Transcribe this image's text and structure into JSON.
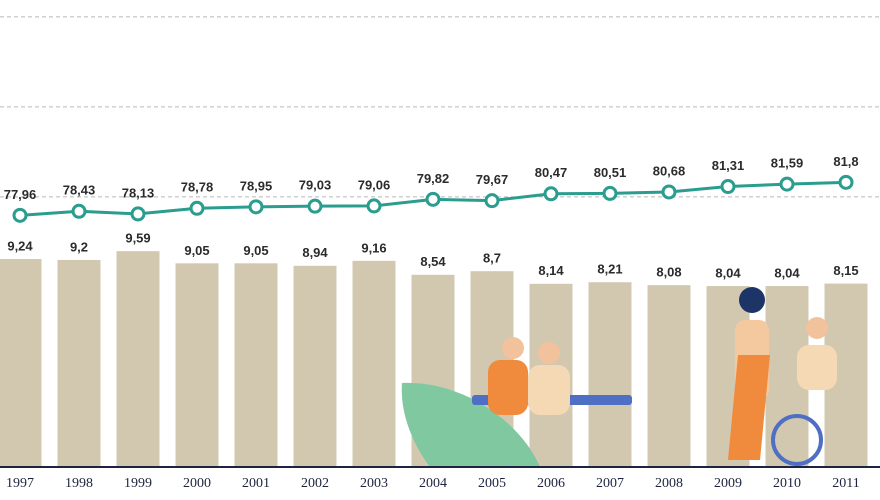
{
  "chart_data": {
    "type": "bar",
    "categories": [
      "1997",
      "1998",
      "1999",
      "2000",
      "2001",
      "2002",
      "2003",
      "2004",
      "2005",
      "2006",
      "2007",
      "2008",
      "2009",
      "2010",
      "2011"
    ],
    "ylim": [
      0,
      20.75
    ],
    "yticks": [
      12,
      16,
      20
    ],
    "grid": true,
    "y2lim": [
      48.7,
      103
    ],
    "series": [
      {
        "name": "bars",
        "type": "bar",
        "color": "#d2c8b0",
        "values": [
          9.24,
          9.2,
          9.59,
          9.05,
          9.05,
          8.94,
          9.16,
          8.54,
          8.7,
          8.14,
          8.21,
          8.08,
          8.04,
          8.04,
          8.15
        ],
        "value_labels": [
          "9,24",
          "9,2",
          "9,59",
          "9,05",
          "9,05",
          "8,94",
          "9,16",
          "8,54",
          "8,7",
          "8,14",
          "8,21",
          "8,08",
          "8,04",
          "8,04",
          "8,15"
        ]
      },
      {
        "name": "line",
        "type": "line",
        "axis": "y2",
        "color": "#2a9d8f",
        "values": [
          77.96,
          78.43,
          78.13,
          78.78,
          78.95,
          79.03,
          79.06,
          79.82,
          79.67,
          80.47,
          80.51,
          80.68,
          81.31,
          81.59,
          81.8
        ],
        "value_labels": [
          "77,96",
          "78,43",
          "78,13",
          "78,78",
          "78,95",
          "79,03",
          "79,06",
          "79,82",
          "79,67",
          "80,47",
          "80,51",
          "80,68",
          "81,31",
          "81,59",
          "81,8"
        ]
      }
    ]
  }
}
